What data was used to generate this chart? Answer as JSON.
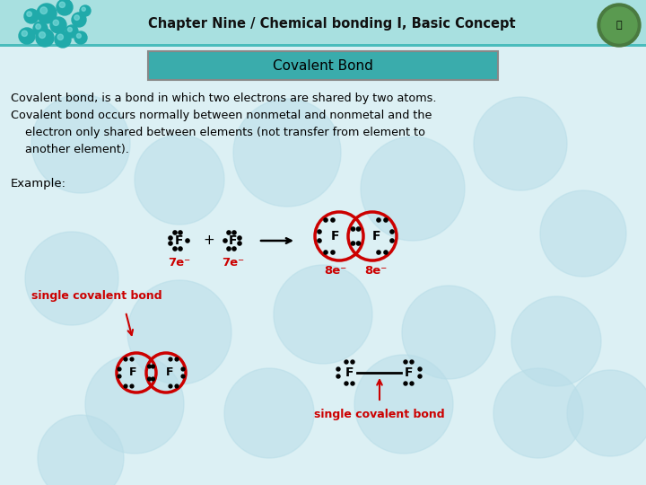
{
  "title": "Chapter Nine / Chemical bonding I, Basic Concept",
  "subtitle": "Covalent Bond",
  "header_bg": "#A8E0E0",
  "header_line_color": "#4ABCBC",
  "subtitle_bg": "#3AACAC",
  "body_bg": "#DCF0F4",
  "red_color": "#CC0000",
  "line1": "Covalent bond, is a bond in which two electrons are shared by two atoms.",
  "line2": "Covalent bond occurs normally between nonmetal and nonmetal and the",
  "line3": "    electron only shared between elements (not transfer from element to",
  "line4": "    another element).",
  "example_label": "Example:",
  "label_7e_1": "7e⁻",
  "label_7e_2": "7e⁻",
  "label_8e_1": "8e⁻",
  "label_8e_2": "8e⁻",
  "single_covalent_bond": "single covalent bond",
  "hex_circles": [
    [
      90,
      160,
      55
    ],
    [
      200,
      200,
      50
    ],
    [
      320,
      170,
      60
    ],
    [
      460,
      210,
      58
    ],
    [
      580,
      160,
      52
    ],
    [
      650,
      260,
      48
    ],
    [
      80,
      310,
      52
    ],
    [
      200,
      370,
      58
    ],
    [
      360,
      350,
      55
    ],
    [
      500,
      370,
      52
    ],
    [
      620,
      380,
      50
    ],
    [
      150,
      450,
      55
    ],
    [
      300,
      460,
      50
    ],
    [
      450,
      450,
      55
    ],
    [
      600,
      460,
      50
    ],
    [
      90,
      510,
      48
    ],
    [
      680,
      460,
      48
    ]
  ]
}
